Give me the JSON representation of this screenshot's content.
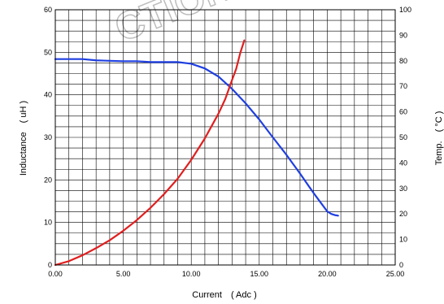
{
  "chart_data": {
    "type": "line",
    "title": "",
    "xlabel": "Current　( Adc )",
    "ylabel_left": "Inductance　( uH )",
    "ylabel_right": "Temp.　( °C )",
    "xlim": [
      0,
      25
    ],
    "ylim_left": [
      0,
      60
    ],
    "ylim_right": [
      0,
      100
    ],
    "x_ticks": [
      "0.00",
      "5.00",
      "10.00",
      "15.00",
      "20.00",
      "25.00"
    ],
    "y_left_ticks": [
      "0",
      "10",
      "20",
      "30",
      "40",
      "50",
      "60"
    ],
    "y_right_ticks": [
      "0",
      "10",
      "20",
      "30",
      "40",
      "50",
      "60",
      "70",
      "80",
      "90",
      "100"
    ],
    "grid": true,
    "legend": "none",
    "watermark": "CTION",
    "series": [
      {
        "axis": "left",
        "color": "#1f3fe0",
        "points": [
          [
            0,
            48.4
          ],
          [
            1,
            48.4
          ],
          [
            2,
            48.4
          ],
          [
            3,
            48.1
          ],
          [
            4,
            48.0
          ],
          [
            5,
            47.9
          ],
          [
            6,
            47.9
          ],
          [
            7,
            47.7
          ],
          [
            8,
            47.7
          ],
          [
            9,
            47.7
          ],
          [
            10,
            47.3
          ],
          [
            11,
            46.2
          ],
          [
            12,
            44.3
          ],
          [
            13,
            41.4
          ],
          [
            14,
            38.0
          ],
          [
            15,
            34.2
          ],
          [
            16,
            30.0
          ],
          [
            17,
            25.9
          ],
          [
            18,
            21.5
          ],
          [
            19,
            16.9
          ],
          [
            20,
            12.6
          ],
          [
            20.3,
            12.0
          ],
          [
            20.6,
            11.7
          ],
          [
            20.8,
            11.6
          ]
        ]
      },
      {
        "axis": "right",
        "color": "#e01f1f",
        "points": [
          [
            0,
            0
          ],
          [
            1,
            1.5
          ],
          [
            2,
            3.8
          ],
          [
            3,
            6.6
          ],
          [
            4,
            9.7
          ],
          [
            5,
            13.4
          ],
          [
            6,
            17.6
          ],
          [
            7,
            22.4
          ],
          [
            8,
            27.8
          ],
          [
            9,
            33.8
          ],
          [
            10,
            41.2
          ],
          [
            11,
            49.6
          ],
          [
            12,
            59.3
          ],
          [
            12.5,
            65
          ],
          [
            13,
            72.5
          ],
          [
            13.3,
            76.8
          ],
          [
            13.6,
            83
          ],
          [
            13.9,
            88
          ]
        ]
      }
    ]
  }
}
